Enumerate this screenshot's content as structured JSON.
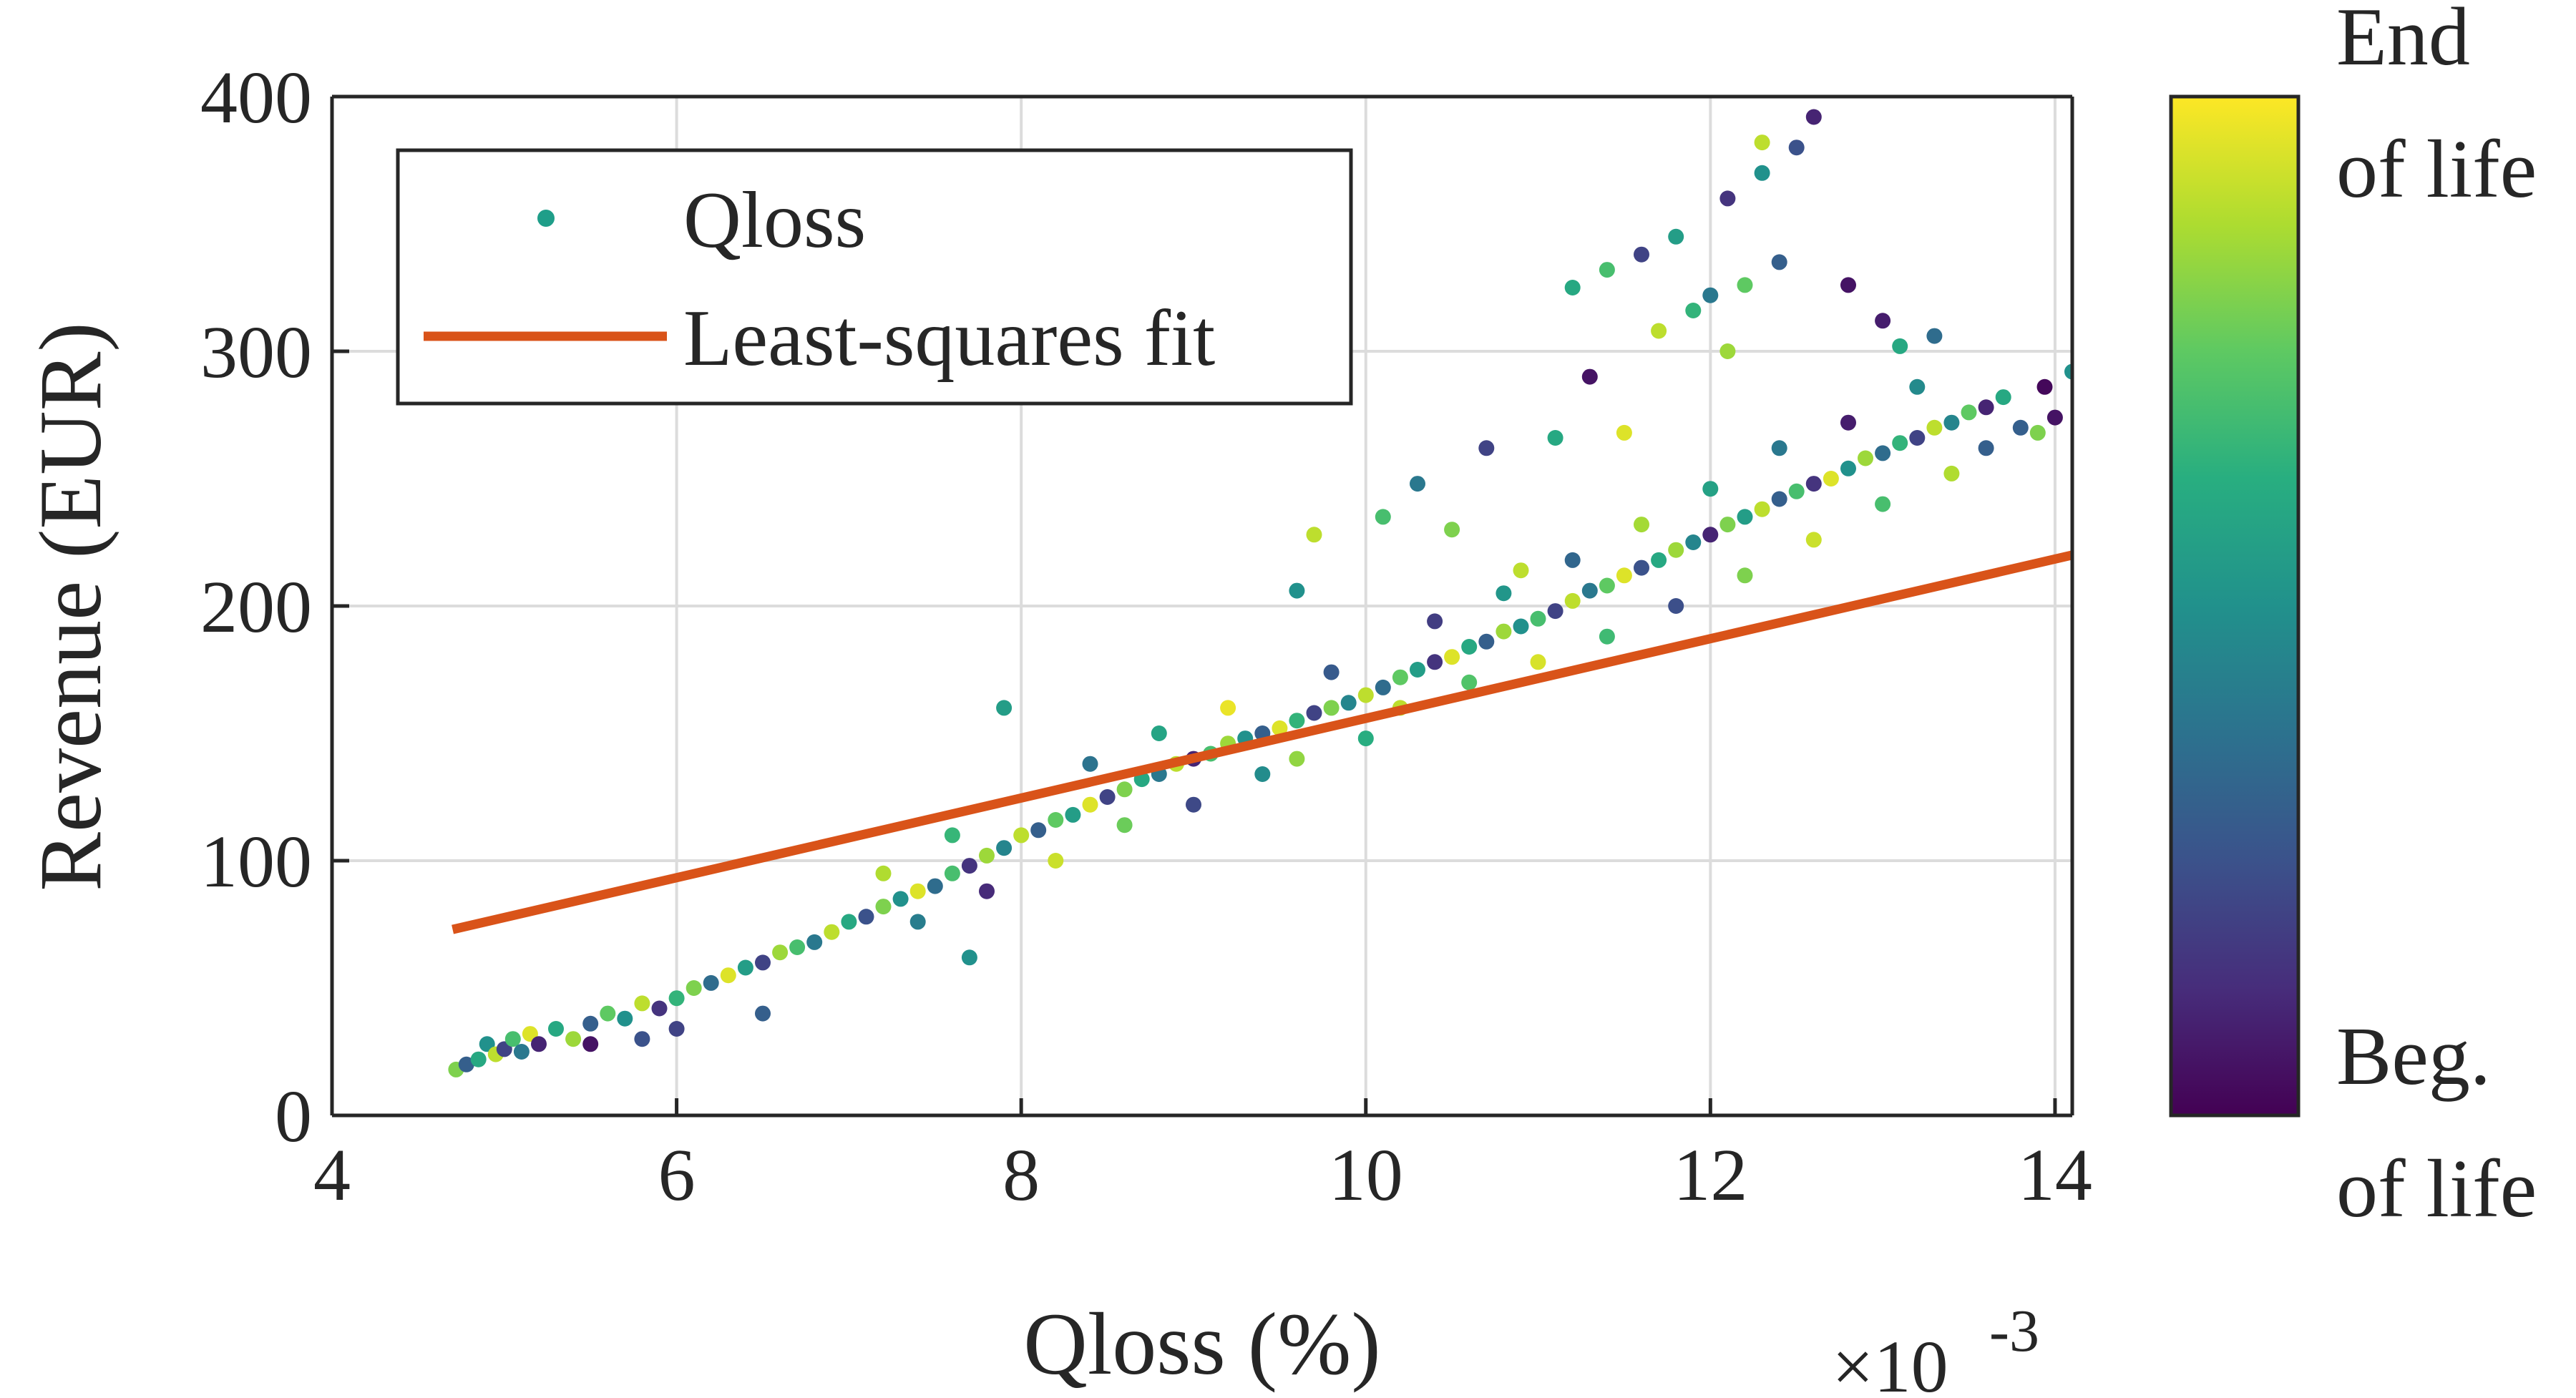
{
  "chart_data": {
    "type": "scatter",
    "xlabel": "Qloss (%)",
    "ylabel": "Revenue (EUR)",
    "x_multiplier_label": "×10",
    "x_multiplier_exponent": "-3",
    "xlim": [
      0.004,
      0.0141
    ],
    "ylim": [
      0,
      400
    ],
    "x_ticks": [
      0.004,
      0.006,
      0.008,
      0.01,
      0.012,
      0.014
    ],
    "x_tick_labels": [
      "4",
      "6",
      "8",
      "10",
      "12",
      "14"
    ],
    "y_ticks": [
      0,
      100,
      200,
      300,
      400
    ],
    "y_tick_labels": [
      "0",
      "100",
      "200",
      "300",
      "400"
    ],
    "grid": true,
    "legend": {
      "placement": "top-left",
      "entries": [
        {
          "label": "Qloss",
          "kind": "marker",
          "color": "#1f9e89"
        },
        {
          "label": "Least-squares fit",
          "kind": "line",
          "color": "#d95319"
        }
      ]
    },
    "colorbar": {
      "colormap": "viridis",
      "top_label": [
        "End",
        "of life"
      ],
      "bottom_label": [
        "Beg.",
        "of life"
      ]
    },
    "series": [
      {
        "name": "Qloss",
        "kind": "scatter",
        "color_encoding": "life stage (viridis)",
        "points": [
          [
            0.00472,
            18,
            0.8
          ],
          [
            0.00478,
            20,
            0.3
          ],
          [
            0.00485,
            22,
            0.6
          ],
          [
            0.0049,
            28,
            0.5
          ],
          [
            0.00495,
            24,
            0.9
          ],
          [
            0.005,
            26,
            0.2
          ],
          [
            0.00505,
            30,
            0.7
          ],
          [
            0.0051,
            25,
            0.4
          ],
          [
            0.00515,
            32,
            0.95
          ],
          [
            0.0052,
            28,
            0.1
          ],
          [
            0.0053,
            34,
            0.6
          ],
          [
            0.0054,
            30,
            0.85
          ],
          [
            0.0055,
            36,
            0.3
          ],
          [
            0.0056,
            40,
            0.75
          ],
          [
            0.0057,
            38,
            0.5
          ],
          [
            0.0058,
            44,
            0.9
          ],
          [
            0.0059,
            42,
            0.15
          ],
          [
            0.006,
            46,
            0.65
          ],
          [
            0.0061,
            50,
            0.8
          ],
          [
            0.0062,
            52,
            0.35
          ],
          [
            0.0063,
            55,
            0.95
          ],
          [
            0.0064,
            58,
            0.55
          ],
          [
            0.0065,
            60,
            0.2
          ],
          [
            0.0066,
            64,
            0.85
          ],
          [
            0.0067,
            66,
            0.7
          ],
          [
            0.0068,
            68,
            0.4
          ],
          [
            0.0069,
            72,
            0.9
          ],
          [
            0.007,
            76,
            0.6
          ],
          [
            0.0071,
            78,
            0.25
          ],
          [
            0.0072,
            82,
            0.8
          ],
          [
            0.0073,
            85,
            0.5
          ],
          [
            0.0074,
            88,
            0.95
          ],
          [
            0.0075,
            90,
            0.35
          ],
          [
            0.0076,
            95,
            0.7
          ],
          [
            0.0077,
            98,
            0.15
          ],
          [
            0.0078,
            102,
            0.85
          ],
          [
            0.0079,
            105,
            0.45
          ],
          [
            0.008,
            110,
            0.9
          ],
          [
            0.0081,
            112,
            0.3
          ],
          [
            0.0082,
            116,
            0.75
          ],
          [
            0.0083,
            118,
            0.55
          ],
          [
            0.0084,
            122,
            0.95
          ],
          [
            0.0085,
            125,
            0.2
          ],
          [
            0.0086,
            128,
            0.8
          ],
          [
            0.0087,
            132,
            0.6
          ],
          [
            0.0088,
            134,
            0.4
          ],
          [
            0.0089,
            138,
            0.9
          ],
          [
            0.009,
            140,
            0.1
          ],
          [
            0.0091,
            142,
            0.7
          ],
          [
            0.0092,
            146,
            0.85
          ],
          [
            0.0093,
            148,
            0.5
          ],
          [
            0.0094,
            150,
            0.3
          ],
          [
            0.0095,
            152,
            0.95
          ],
          [
            0.0096,
            155,
            0.65
          ],
          [
            0.0097,
            158,
            0.2
          ],
          [
            0.0098,
            160,
            0.8
          ],
          [
            0.0099,
            162,
            0.45
          ],
          [
            0.01,
            165,
            0.9
          ],
          [
            0.0101,
            168,
            0.35
          ],
          [
            0.0102,
            172,
            0.75
          ],
          [
            0.0103,
            175,
            0.55
          ],
          [
            0.0104,
            178,
            0.15
          ],
          [
            0.0105,
            180,
            0.95
          ],
          [
            0.0106,
            184,
            0.6
          ],
          [
            0.0107,
            186,
            0.3
          ],
          [
            0.0108,
            190,
            0.85
          ],
          [
            0.0109,
            192,
            0.5
          ],
          [
            0.011,
            195,
            0.7
          ],
          [
            0.0111,
            198,
            0.2
          ],
          [
            0.0112,
            202,
            0.9
          ],
          [
            0.0113,
            206,
            0.4
          ],
          [
            0.0114,
            208,
            0.75
          ],
          [
            0.0115,
            212,
            0.95
          ],
          [
            0.0116,
            215,
            0.25
          ],
          [
            0.0117,
            218,
            0.6
          ],
          [
            0.0118,
            222,
            0.85
          ],
          [
            0.0119,
            225,
            0.45
          ],
          [
            0.012,
            228,
            0.1
          ],
          [
            0.0121,
            232,
            0.8
          ],
          [
            0.0122,
            235,
            0.55
          ],
          [
            0.0123,
            238,
            0.9
          ],
          [
            0.0124,
            242,
            0.3
          ],
          [
            0.0125,
            245,
            0.7
          ],
          [
            0.0126,
            248,
            0.15
          ],
          [
            0.0127,
            250,
            0.95
          ],
          [
            0.0128,
            254,
            0.5
          ],
          [
            0.0129,
            258,
            0.85
          ],
          [
            0.013,
            260,
            0.35
          ],
          [
            0.0131,
            264,
            0.65
          ],
          [
            0.0132,
            266,
            0.2
          ],
          [
            0.0133,
            270,
            0.9
          ],
          [
            0.0134,
            272,
            0.45
          ],
          [
            0.0135,
            276,
            0.75
          ],
          [
            0.0136,
            278,
            0.1
          ],
          [
            0.0137,
            282,
            0.6
          ],
          [
            0.0138,
            270,
            0.3
          ],
          [
            0.0139,
            268,
            0.8
          ],
          [
            0.014,
            274,
            0.05
          ],
          [
            0.0141,
            292,
            0.5
          ],
          [
            0.01394,
            286,
            0.02
          ],
          [
            0.0072,
            95,
            0.88
          ],
          [
            0.0074,
            76,
            0.42
          ],
          [
            0.0076,
            110,
            0.66
          ],
          [
            0.0078,
            88,
            0.12
          ],
          [
            0.0082,
            100,
            0.92
          ],
          [
            0.0084,
            138,
            0.38
          ],
          [
            0.0086,
            114,
            0.77
          ],
          [
            0.0088,
            150,
            0.58
          ],
          [
            0.009,
            122,
            0.22
          ],
          [
            0.0092,
            160,
            0.97
          ],
          [
            0.0094,
            134,
            0.48
          ],
          [
            0.0096,
            140,
            0.83
          ],
          [
            0.0098,
            174,
            0.28
          ],
          [
            0.01,
            148,
            0.62
          ],
          [
            0.0102,
            160,
            0.9
          ],
          [
            0.0104,
            194,
            0.18
          ],
          [
            0.0106,
            170,
            0.72
          ],
          [
            0.0108,
            205,
            0.52
          ],
          [
            0.011,
            178,
            0.94
          ],
          [
            0.0112,
            218,
            0.33
          ],
          [
            0.0114,
            188,
            0.68
          ],
          [
            0.0116,
            232,
            0.86
          ],
          [
            0.0118,
            200,
            0.24
          ],
          [
            0.012,
            246,
            0.57
          ],
          [
            0.0122,
            212,
            0.8
          ],
          [
            0.0124,
            262,
            0.4
          ],
          [
            0.0126,
            226,
            0.92
          ],
          [
            0.0128,
            272,
            0.08
          ],
          [
            0.013,
            240,
            0.7
          ],
          [
            0.0132,
            286,
            0.47
          ],
          [
            0.0134,
            252,
            0.88
          ],
          [
            0.0136,
            262,
            0.3
          ],
          [
            0.0112,
            325,
            0.6
          ],
          [
            0.0114,
            332,
            0.7
          ],
          [
            0.0116,
            338,
            0.2
          ],
          [
            0.0118,
            345,
            0.55
          ],
          [
            0.0117,
            308,
            0.9
          ],
          [
            0.0119,
            316,
            0.65
          ],
          [
            0.012,
            322,
            0.4
          ],
          [
            0.0121,
            360,
            0.15
          ],
          [
            0.0122,
            326,
            0.75
          ],
          [
            0.0123,
            370,
            0.5
          ],
          [
            0.0124,
            335,
            0.3
          ],
          [
            0.0126,
            392,
            0.1
          ],
          [
            0.0123,
            382,
            0.9
          ],
          [
            0.0125,
            380,
            0.25
          ],
          [
            0.0128,
            326,
            0.05
          ],
          [
            0.0121,
            300,
            0.85
          ],
          [
            0.0113,
            290,
            0.05
          ],
          [
            0.0115,
            268,
            0.95
          ],
          [
            0.013,
            312,
            0.08
          ],
          [
            0.0131,
            302,
            0.6
          ],
          [
            0.0133,
            306,
            0.35
          ],
          [
            0.0096,
            206,
            0.5
          ],
          [
            0.0097,
            228,
            0.9
          ],
          [
            0.0101,
            235,
            0.7
          ],
          [
            0.0103,
            248,
            0.4
          ],
          [
            0.0105,
            230,
            0.8
          ],
          [
            0.0107,
            262,
            0.2
          ],
          [
            0.0109,
            214,
            0.9
          ],
          [
            0.0111,
            266,
            0.6
          ],
          [
            0.0079,
            160,
            0.55
          ],
          [
            0.0077,
            62,
            0.5
          ],
          [
            0.0065,
            40,
            0.3
          ],
          [
            0.006,
            34,
            0.2
          ],
          [
            0.0058,
            30,
            0.25
          ],
          [
            0.0055,
            28,
            0.05
          ]
        ]
      },
      {
        "name": "Least-squares fit",
        "kind": "line",
        "color": "#d95319",
        "x": [
          0.0047,
          0.0141
        ],
        "y": [
          73,
          220
        ]
      }
    ]
  }
}
